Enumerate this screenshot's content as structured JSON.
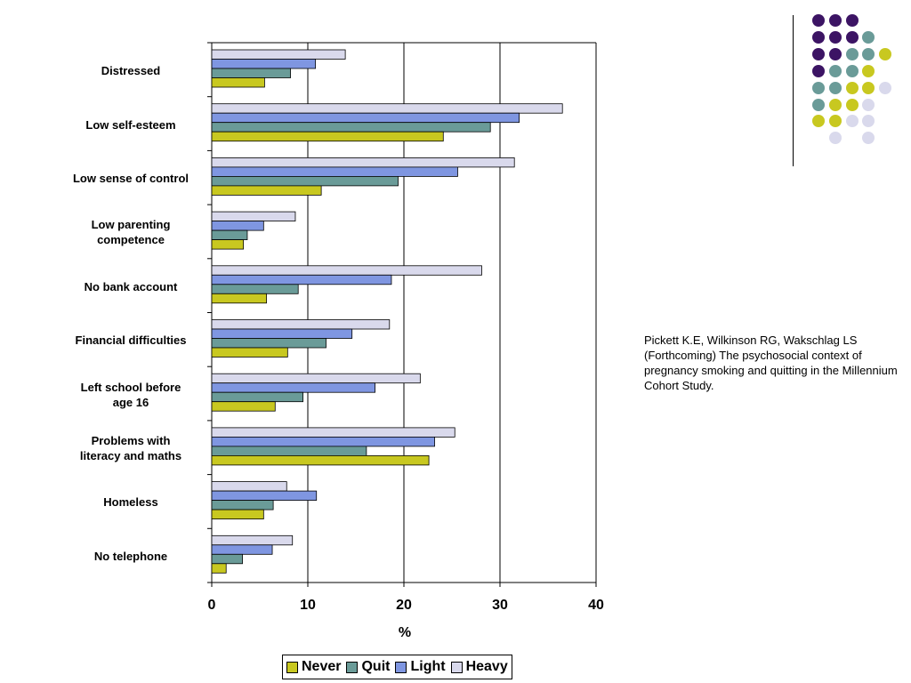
{
  "chart_data": {
    "type": "bar",
    "orientation": "horizontal",
    "categories": [
      "Distressed",
      "Low self-esteem",
      "Low sense of control",
      "Low parenting competence",
      "No bank account",
      "Financial difficulties",
      "Left school before age 16",
      "Problems with literacy and maths",
      "Homeless",
      "No telephone"
    ],
    "category_lines": [
      [
        "Distressed"
      ],
      [
        "Low self-esteem"
      ],
      [
        "Low sense of control"
      ],
      [
        "Low parenting",
        "competence"
      ],
      [
        "No bank account"
      ],
      [
        "Financial difficulties"
      ],
      [
        "Left school before",
        "age 16"
      ],
      [
        "Problems with",
        "literacy and maths"
      ],
      [
        "Homeless"
      ],
      [
        "No telephone"
      ]
    ],
    "series": [
      {
        "name": "Heavy",
        "color": "#d9d9ec",
        "values": [
          13.9,
          36.5,
          31.5,
          8.7,
          28.1,
          18.5,
          21.7,
          25.3,
          7.8,
          8.4
        ]
      },
      {
        "name": "Light",
        "color": "#7f96e1",
        "values": [
          10.8,
          32.0,
          25.6,
          5.4,
          18.7,
          14.6,
          17.0,
          23.2,
          10.9,
          6.3
        ]
      },
      {
        "name": "Quit",
        "color": "#6a9b98",
        "values": [
          8.2,
          29.0,
          19.4,
          3.7,
          9.0,
          11.9,
          9.5,
          16.1,
          6.4,
          3.2
        ]
      },
      {
        "name": "Never",
        "color": "#c8c820",
        "values": [
          5.5,
          24.1,
          11.4,
          3.3,
          5.7,
          7.9,
          6.6,
          22.6,
          5.4,
          1.5
        ]
      }
    ],
    "legend_order": [
      "Never",
      "Quit",
      "Light",
      "Heavy"
    ],
    "xlim": [
      0,
      40
    ],
    "xticks": [
      "0",
      "10",
      "20",
      "30",
      "40"
    ],
    "xlabel": "%",
    "ylabel": "",
    "grid": "vertical",
    "legend_position": "bottom"
  },
  "citation": "Pickett K.E, Wilkinson RG, Wakschlag LS (Forthcoming) The psychosocial context of pregnancy smoking and quitting in the Millennium Cohort Study.",
  "decoration": {
    "dot_colors": {
      "purple": "#3c1464",
      "teal": "#6a9b98",
      "yellow": "#c8c820",
      "lavender": "#d9d9ec"
    },
    "dot_grid": [
      [
        "purple",
        "purple",
        "purple",
        "",
        ""
      ],
      [
        "purple",
        "purple",
        "purple",
        "teal",
        ""
      ],
      [
        "purple",
        "purple",
        "teal",
        "teal",
        "yellow"
      ],
      [
        "purple",
        "teal",
        "teal",
        "yellow",
        ""
      ],
      [
        "teal",
        "teal",
        "yellow",
        "yellow",
        "lavender"
      ],
      [
        "teal",
        "yellow",
        "yellow",
        "lavender",
        ""
      ],
      [
        "yellow",
        "yellow",
        "lavender",
        "lavender",
        ""
      ],
      [
        "",
        "lavender",
        "",
        "lavender",
        ""
      ]
    ]
  }
}
